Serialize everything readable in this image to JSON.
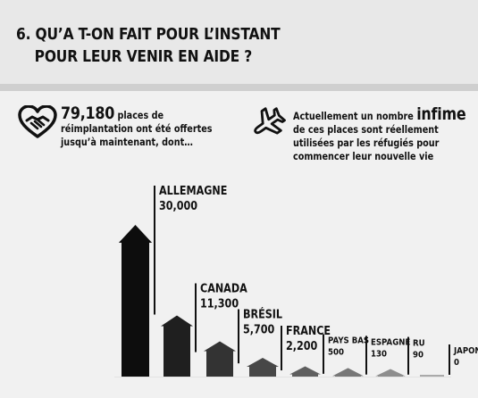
{
  "header": {
    "title_line1": "6. QU’A T-ON FAIT POUR L’INSTANT",
    "title_line2": "POUR LEUR VENIR EN AIDE ?"
  },
  "intro": {
    "number": "79,180",
    "text_line1": "places de",
    "text_line2": "réimplantation ont été offertes",
    "text_line3": "jusqu’à maintenant, dont…",
    "icon": "handshake-heart-icon"
  },
  "note": {
    "line1_prefix": "Actuellement un nombre",
    "line1_emphasis": "infime",
    "line2": "de ces places sont réellement",
    "line3": "utilisées par les réfugiés pour",
    "line4": "commencer leur nouvelle vie",
    "icon": "airplane-icon"
  },
  "chart_data": {
    "type": "bar",
    "categories": [
      "ALLEMAGNE",
      "CANADA",
      "BRÉSIL",
      "FRANCE",
      "PAYS BAS",
      "ESPAGNE",
      "RU",
      "JAPON"
    ],
    "values": [
      30000,
      11300,
      5700,
      2200,
      500,
      130,
      90,
      0
    ],
    "value_labels": [
      "30,000",
      "11,300",
      "5,700",
      "2,200",
      "500",
      "130",
      "90",
      "0"
    ],
    "title": "",
    "xlabel": "",
    "ylabel": "",
    "bar_shape": "house",
    "colors": [
      "#0d0d0d",
      "#1f1f1f",
      "#333333",
      "#474747",
      "#5f5f5f",
      "#777777",
      "#8e8e8e",
      "#aaaaaa"
    ]
  }
}
